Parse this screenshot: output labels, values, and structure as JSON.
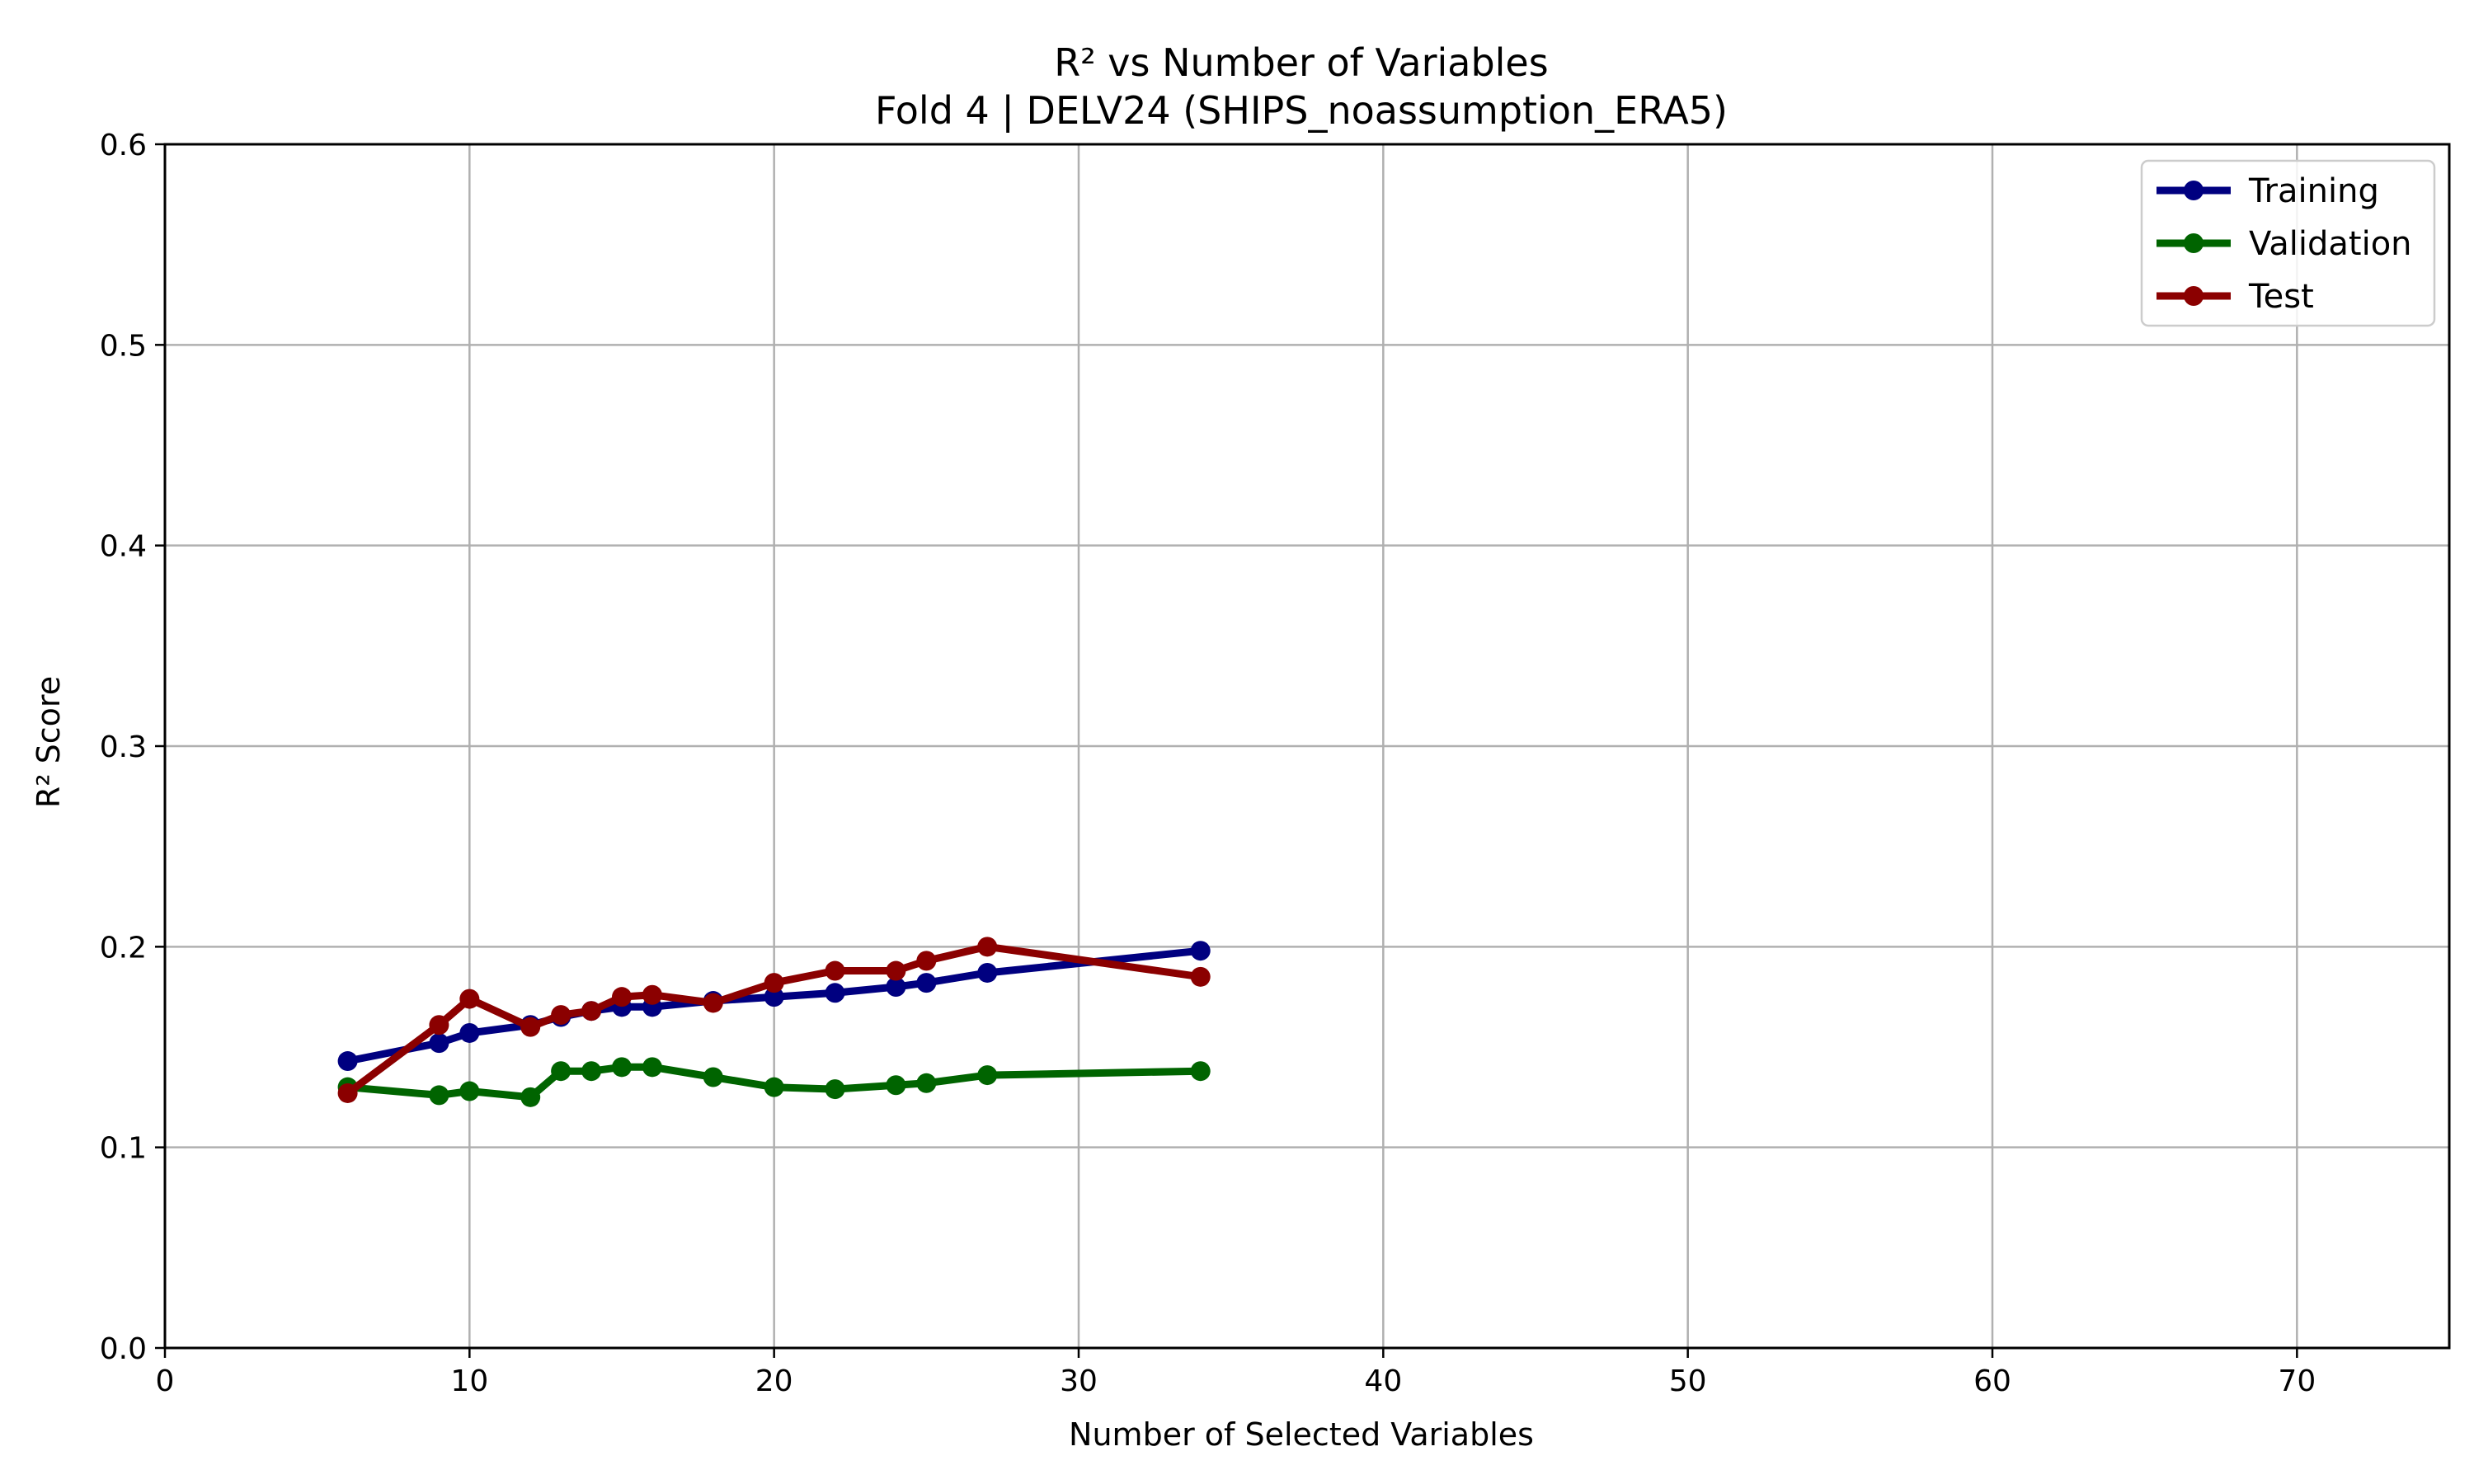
{
  "chart_data": {
    "type": "line",
    "title": "R² vs Number of Variables",
    "subtitle": "Fold 4 | DELV24 (SHIPS_noassumption_ERA5)",
    "xlabel": "Number of Selected Variables",
    "ylabel": "R² Score",
    "xlim": [
      0,
      75
    ],
    "ylim": [
      0,
      0.6
    ],
    "xticks": [
      0,
      10,
      20,
      30,
      40,
      50,
      60,
      70
    ],
    "yticks": [
      0.0,
      0.1,
      0.2,
      0.3,
      0.4,
      0.5,
      0.6
    ],
    "xtick_labels": [
      "0",
      "10",
      "20",
      "30",
      "40",
      "50",
      "60",
      "70"
    ],
    "ytick_labels": [
      "0.0",
      "0.1",
      "0.2",
      "0.3",
      "0.4",
      "0.5",
      "0.6"
    ],
    "grid": true,
    "legend_position": "top-right",
    "x": [
      6,
      9,
      10,
      12,
      13,
      14,
      15,
      16,
      18,
      20,
      22,
      24,
      25,
      27,
      34
    ],
    "series": [
      {
        "name": "Training",
        "color": "#000080",
        "values": [
          0.143,
          0.152,
          0.157,
          0.161,
          0.165,
          0.168,
          0.17,
          0.17,
          0.173,
          0.175,
          0.177,
          0.18,
          0.182,
          0.187,
          0.198
        ]
      },
      {
        "name": "Validation",
        "color": "#006400",
        "values": [
          0.13,
          0.126,
          0.128,
          0.125,
          0.138,
          0.138,
          0.14,
          0.14,
          0.135,
          0.13,
          0.129,
          0.131,
          0.132,
          0.136,
          0.138
        ]
      },
      {
        "name": "Test",
        "color": "#8b0000",
        "values": [
          0.127,
          0.161,
          0.174,
          0.16,
          0.166,
          0.168,
          0.175,
          0.176,
          0.172,
          0.182,
          0.188,
          0.188,
          0.193,
          0.2,
          0.185
        ]
      }
    ]
  }
}
